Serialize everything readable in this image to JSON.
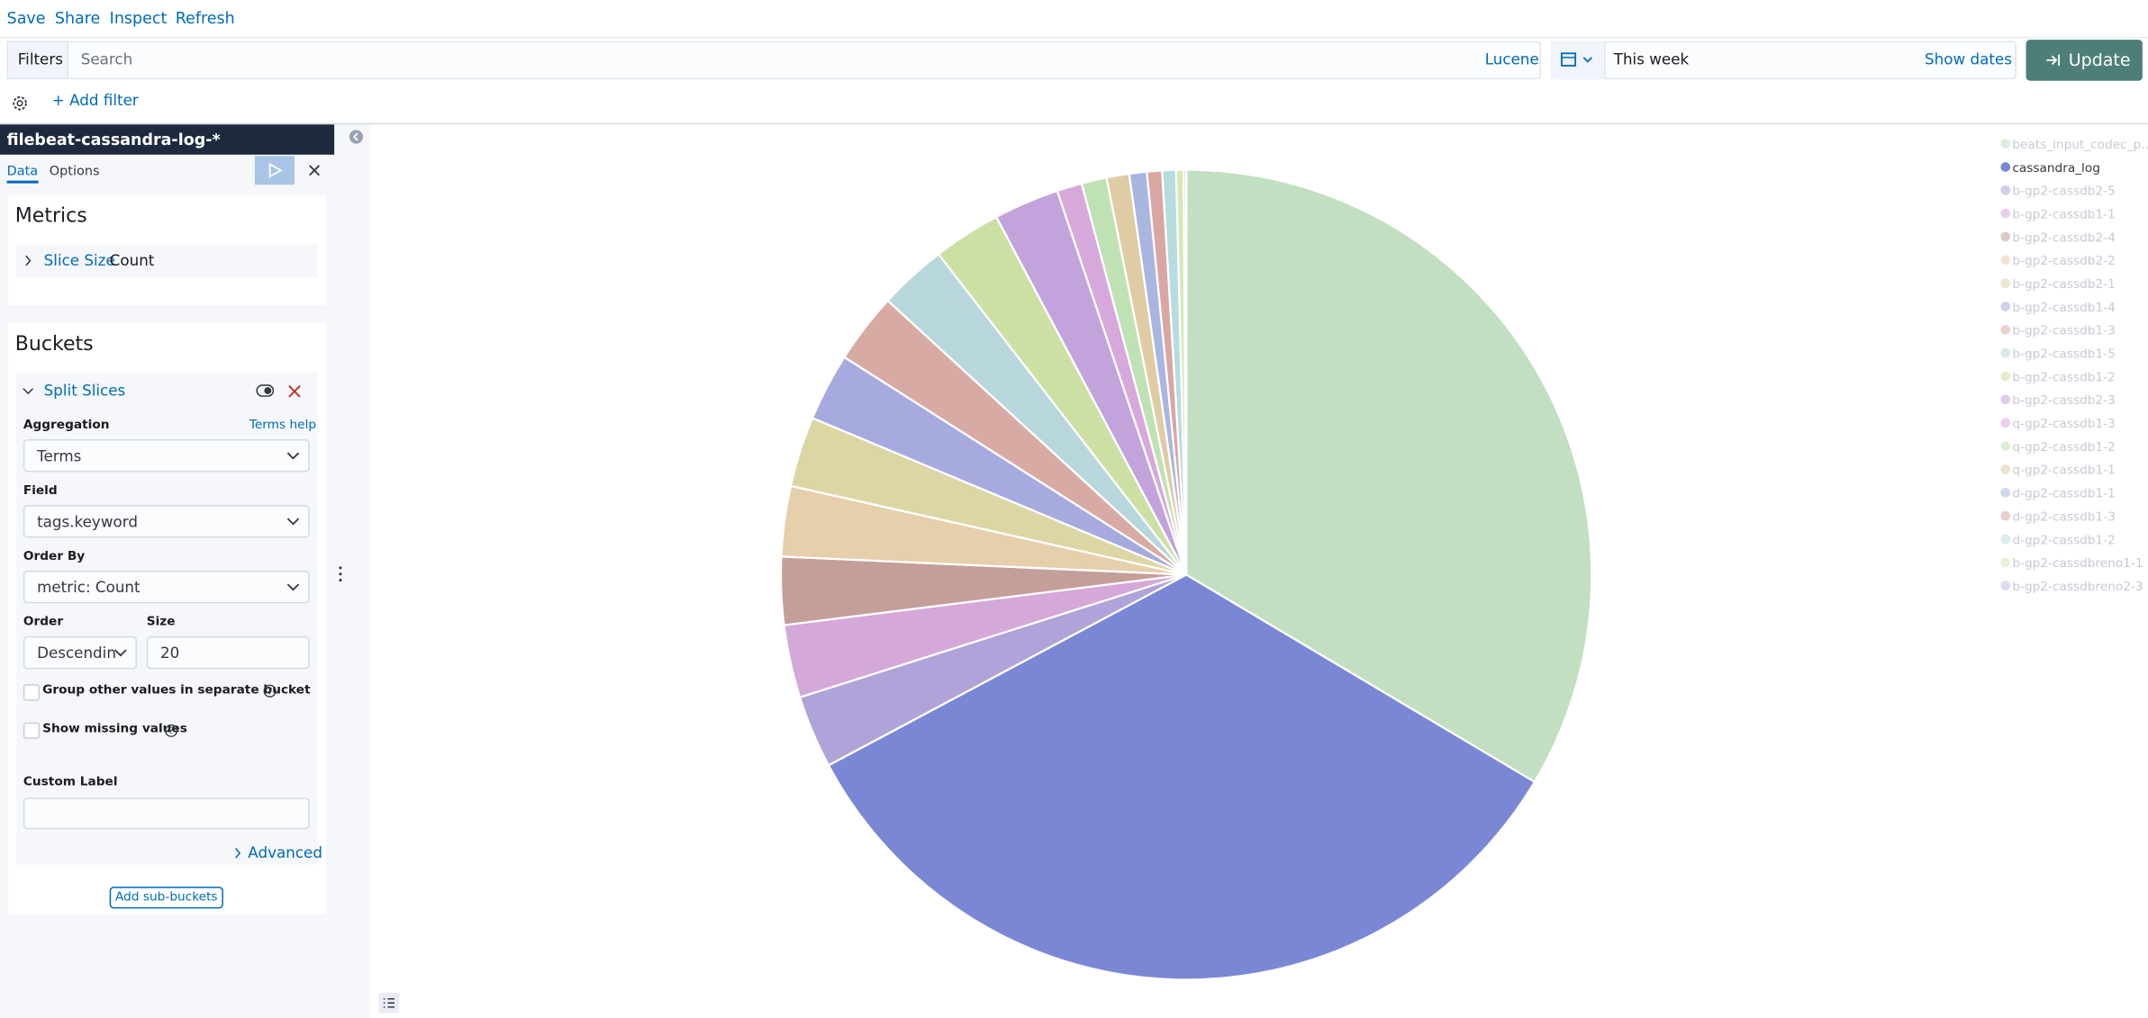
{
  "top_menu": [
    "Save",
    "Share",
    "Inspect",
    "Refresh"
  ],
  "query_bar": {
    "filters_label": "Filters",
    "search_placeholder": "Search",
    "language": "Lucene",
    "time": "This week",
    "show_dates": "Show dates",
    "update": "Update"
  },
  "add_filter": "+ Add filter",
  "sidebar": {
    "index_pattern": "filebeat-cassandra-log-*",
    "tabs": [
      "Data",
      "Options"
    ],
    "metrics": {
      "title": "Metrics",
      "item_label": "Slice Size",
      "item_value": "Count"
    },
    "buckets": {
      "title": "Buckets",
      "item": "Split Slices",
      "aggregation_label": "Aggregation",
      "terms_help": "Terms help",
      "aggregation": "Terms",
      "field_label": "Field",
      "field": "tags.keyword",
      "order_by_label": "Order By",
      "order_by": "metric: Count",
      "order_label": "Order",
      "order": "Descendin",
      "size_label": "Size",
      "size": 20,
      "group_other": "Group other values in separate bucket",
      "show_missing": "Show missing values",
      "custom_label": "Custom Label",
      "advanced": "Advanced"
    },
    "add_sub_buckets": "Add sub-buckets"
  },
  "chart_data": {
    "type": "pie",
    "categories": [
      "beats_input_codec_p...",
      "cassandra_log",
      "b-gp2-cassdb2-5",
      "b-gp2-cassdb1-1",
      "b-gp2-cassdb2-4",
      "b-gp2-cassdb2-2",
      "b-gp2-cassdb2-1",
      "b-gp2-cassdb1-4",
      "b-gp2-cassdb1-3",
      "b-gp2-cassdb1-5",
      "b-gp2-cassdb1-2",
      "b-gp2-cassdb2-3",
      "q-gp2-cassdb1-3",
      "q-gp2-cassdb1-2",
      "q-gp2-cassdb1-1",
      "d-gp2-cassdb1-1",
      "d-gp2-cassdb1-3",
      "d-gp2-cassdb1-2",
      "b-gp2-cassdbreno1-1",
      "b-gp2-cassdbreno2-3"
    ],
    "values": [
      33.5,
      33.6,
      2.9,
      2.9,
      2.7,
      2.8,
      2.8,
      2.7,
      2.8,
      2.7,
      2.7,
      2.6,
      1.0,
      1.0,
      0.9,
      0.7,
      0.6,
      0.55,
      0.3,
      0.1
    ],
    "colors": [
      "#c2dfc1",
      "#7a87d4",
      "#b0a3d9",
      "#d4a8d9",
      "#c49f99",
      "#e6cfab",
      "#dbd6a3",
      "#a6aadf",
      "#d7aba3",
      "#b8d7dd",
      "#cce0a4",
      "#c2a3dc",
      "#d7a9da",
      "#bfe2b5",
      "#e0cca4",
      "#a9b6e0",
      "#d9a6a3",
      "#b6dcdf",
      "#d6e8b4",
      "#c7b9ea"
    ],
    "highlighted": "cassandra_log"
  }
}
